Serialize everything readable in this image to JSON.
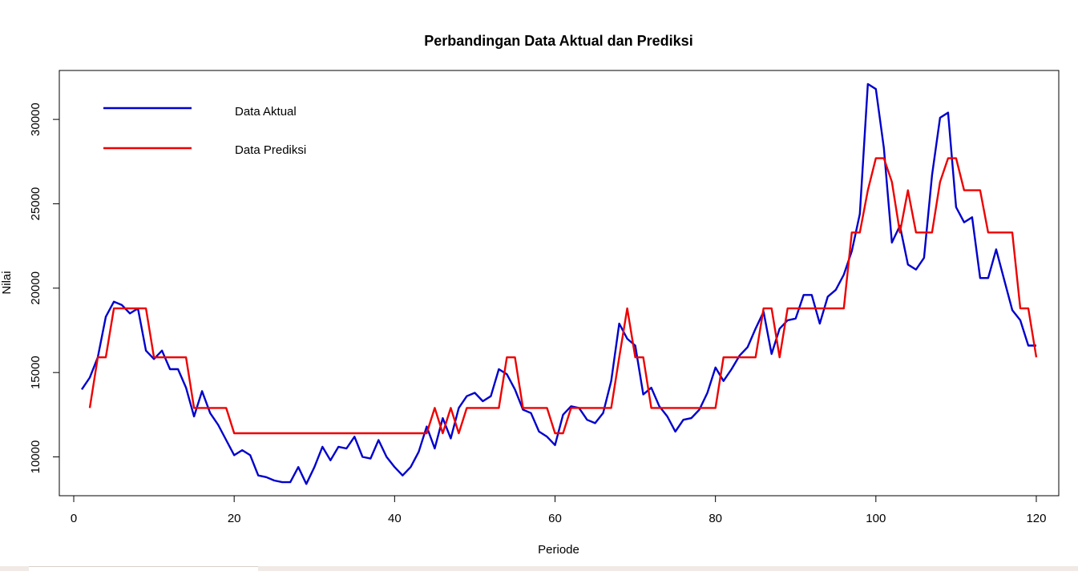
{
  "chart_data": {
    "type": "line",
    "title": "Perbandingan Data Aktual dan Prediksi",
    "xlabel": "Periode",
    "ylabel": "Nilai",
    "xlim": [
      -1.8,
      122.8
    ],
    "ylim": [
      7700,
      32900
    ],
    "x_ticks": [
      0,
      20,
      40,
      60,
      80,
      100,
      120
    ],
    "y_ticks": [
      10000,
      15000,
      20000,
      25000,
      30000
    ],
    "legend_position": "top-left",
    "series": [
      {
        "name": "Data Aktual",
        "color": "#0000cd",
        "x": [
          1,
          2,
          3,
          4,
          5,
          6,
          7,
          8,
          9,
          10,
          11,
          12,
          13,
          14,
          15,
          16,
          17,
          18,
          19,
          20,
          21,
          22,
          23,
          24,
          25,
          26,
          27,
          28,
          29,
          30,
          31,
          32,
          33,
          34,
          35,
          36,
          37,
          38,
          39,
          40,
          41,
          42,
          43,
          44,
          45,
          46,
          47,
          48,
          49,
          50,
          51,
          52,
          53,
          54,
          55,
          56,
          57,
          58,
          59,
          60,
          61,
          62,
          63,
          64,
          65,
          66,
          67,
          68,
          69,
          70,
          71,
          72,
          73,
          74,
          75,
          76,
          77,
          78,
          79,
          80,
          81,
          82,
          83,
          84,
          85,
          86,
          87,
          88,
          89,
          90,
          91,
          92,
          93,
          94,
          95,
          96,
          97,
          98,
          99,
          100,
          101,
          102,
          103,
          104,
          105,
          106,
          107,
          108,
          109,
          110,
          111,
          112,
          113,
          114,
          115,
          116,
          117,
          118,
          119,
          120
        ],
        "y": [
          14000,
          14700,
          15900,
          18300,
          19200,
          19000,
          18500,
          18800,
          16300,
          15800,
          16300,
          15200,
          15200,
          14100,
          12400,
          13900,
          12600,
          11900,
          11000,
          10100,
          10400,
          10100,
          8900,
          8800,
          8600,
          8500,
          8500,
          9400,
          8400,
          9400,
          10600,
          9800,
          10600,
          10500,
          11200,
          10000,
          9900,
          11000,
          10000,
          9400,
          8900,
          9400,
          10300,
          11800,
          10500,
          12300,
          11100,
          12900,
          13600,
          13800,
          13300,
          13600,
          15200,
          14900,
          14000,
          12800,
          12600,
          11500,
          11200,
          10700,
          12500,
          13000,
          12900,
          12200,
          12000,
          12600,
          14500,
          17900,
          17000,
          16600,
          13700,
          14100,
          13000,
          12400,
          11500,
          12200,
          12300,
          12800,
          13800,
          15300,
          14500,
          15200,
          16000,
          16500,
          17600,
          18600,
          16100,
          17600,
          18100,
          18200,
          19600,
          19600,
          17900,
          19500,
          19900,
          20800,
          22200,
          24400,
          32100,
          31800,
          28300,
          22700,
          23700,
          21400,
          21100,
          21800,
          26700,
          30100,
          30400,
          24800,
          23900,
          24200,
          20600,
          20600,
          22300,
          20500,
          18700,
          18100,
          16600,
          16600
        ]
      },
      {
        "name": "Data Prediksi",
        "color": "#ee0000",
        "x": [
          2,
          3,
          4,
          5,
          6,
          7,
          8,
          9,
          10,
          11,
          12,
          13,
          14,
          15,
          16,
          17,
          18,
          19,
          20,
          21,
          22,
          23,
          24,
          25,
          26,
          27,
          28,
          29,
          30,
          31,
          32,
          33,
          34,
          35,
          36,
          37,
          38,
          39,
          40,
          41,
          42,
          43,
          44,
          45,
          46,
          47,
          48,
          49,
          50,
          51,
          52,
          53,
          54,
          55,
          56,
          57,
          58,
          59,
          60,
          61,
          62,
          63,
          64,
          65,
          66,
          67,
          68,
          69,
          70,
          71,
          72,
          73,
          74,
          75,
          76,
          77,
          78,
          79,
          80,
          81,
          82,
          83,
          84,
          85,
          86,
          87,
          88,
          89,
          90,
          91,
          92,
          93,
          94,
          95,
          96,
          97,
          98,
          99,
          100,
          101,
          102,
          103,
          104,
          105,
          106,
          107,
          108,
          109,
          110,
          111,
          112,
          113,
          114,
          115,
          116,
          117,
          118,
          119,
          120
        ],
        "y": [
          12900,
          15900,
          15900,
          18800,
          18800,
          18800,
          18800,
          18800,
          15900,
          15900,
          15900,
          15900,
          15900,
          12900,
          12900,
          12900,
          12900,
          12900,
          11400,
          11400,
          11400,
          11400,
          11400,
          11400,
          11400,
          11400,
          11400,
          11400,
          11400,
          11400,
          11400,
          11400,
          11400,
          11400,
          11400,
          11400,
          11400,
          11400,
          11400,
          11400,
          11400,
          11400,
          11400,
          12900,
          11400,
          12900,
          11400,
          12900,
          12900,
          12900,
          12900,
          12900,
          15900,
          15900,
          12900,
          12900,
          12900,
          12900,
          11400,
          11400,
          12900,
          12900,
          12900,
          12900,
          12900,
          12900,
          15900,
          18800,
          15900,
          15900,
          12900,
          12900,
          12900,
          12900,
          12900,
          12900,
          12900,
          12900,
          12900,
          15900,
          15900,
          15900,
          15900,
          15900,
          18800,
          18800,
          15900,
          18800,
          18800,
          18800,
          18800,
          18800,
          18800,
          18800,
          18800,
          23300,
          23300,
          25800,
          27700,
          27700,
          26300,
          23300,
          25800,
          23300,
          23300,
          23300,
          26300,
          27700,
          27700,
          25800,
          25800,
          25800,
          23300,
          23300,
          23300,
          23300,
          18800,
          18800,
          15900
        ]
      }
    ]
  }
}
